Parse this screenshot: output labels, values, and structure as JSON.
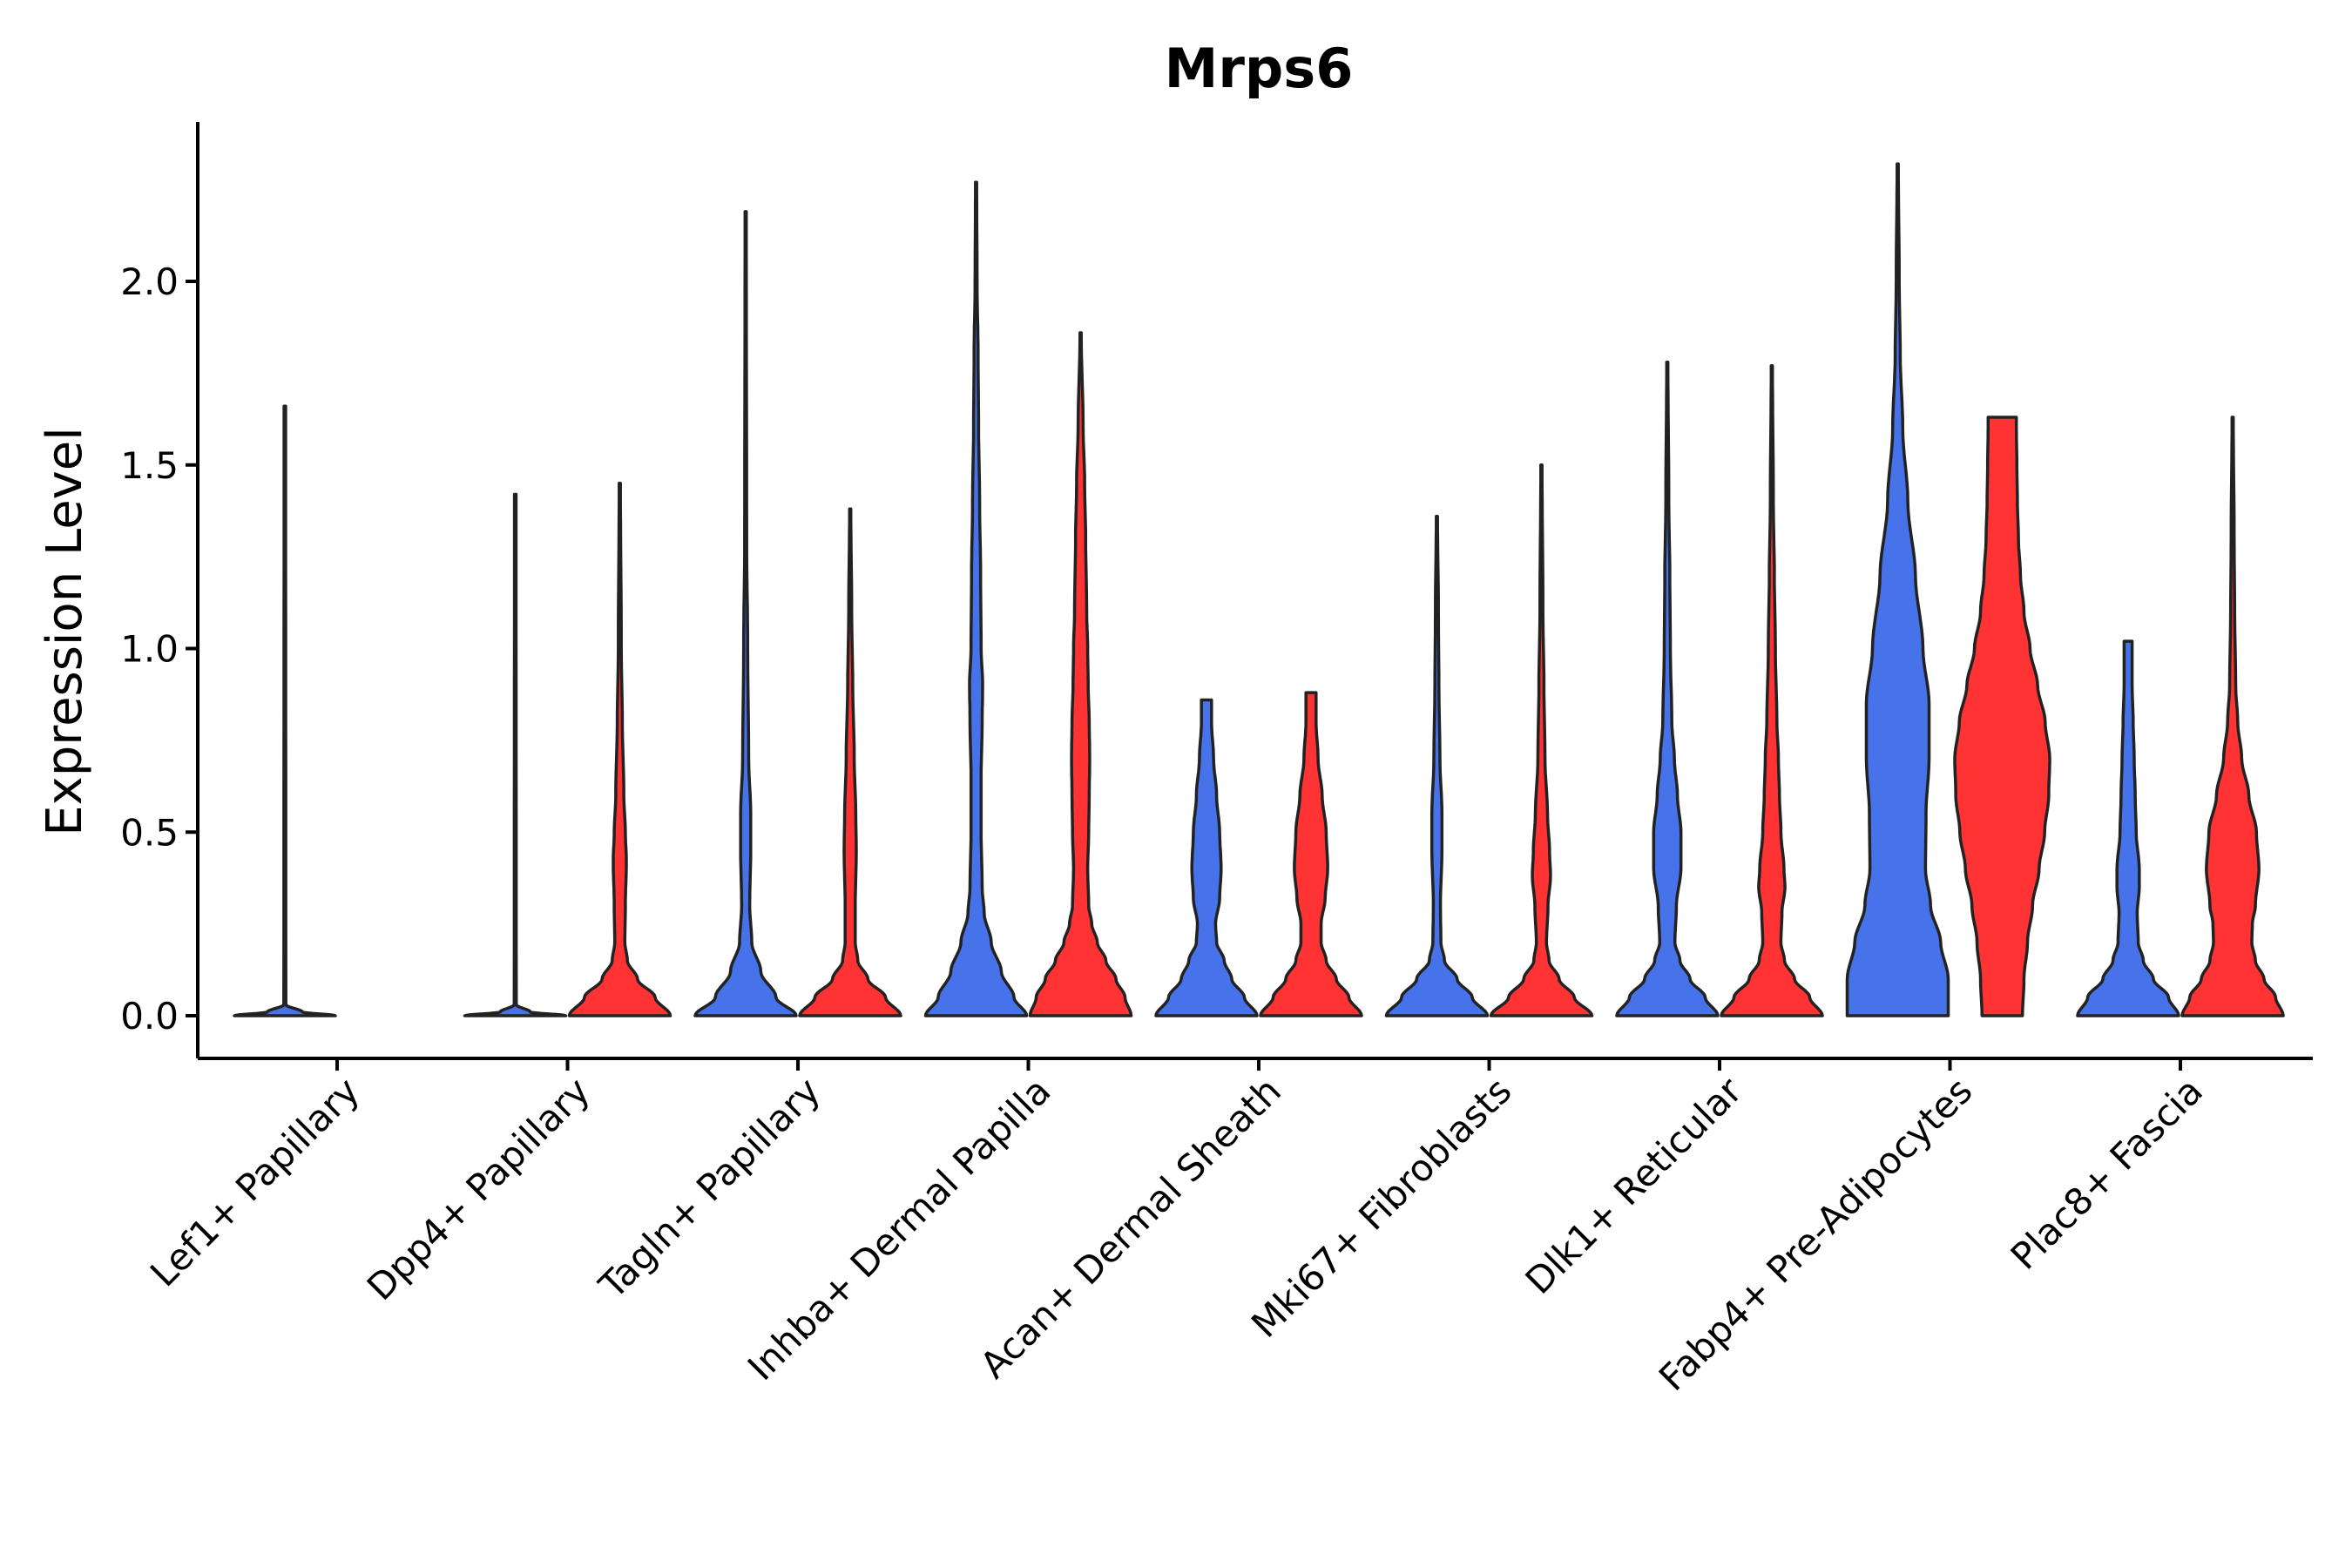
{
  "chart_data": {
    "type": "violin",
    "title": "Mrps6",
    "xlabel": "",
    "ylabel": "Expression Level",
    "ylim": [
      -0.12,
      2.45
    ],
    "yticks": [
      0.0,
      0.5,
      1.0,
      1.5,
      2.0
    ],
    "ytick_labels": [
      "0.0",
      "0.5",
      "1.0",
      "1.5",
      "2.0"
    ],
    "colors": {
      "group1": "#4672EA",
      "group2": "#FF3333"
    },
    "categories": [
      "Lef1+ Papillary",
      "Dpp4+ Papillary",
      "Tagln+ Papillary",
      "Inhba+ Dermal Papilla",
      "Acan+ Dermal Sheath",
      "Mki67+ Fibroblasts",
      "Dlk1+ Reticular",
      "Fabp4+ Pre-Adipocytes",
      "Plac8+ Fascia"
    ],
    "series": [
      {
        "name": "group1",
        "violins": [
          {
            "category": "Lef1+ Papillary",
            "max": 1.66,
            "profile": [
              [
                0.0,
                1.0
              ],
              [
                0.01,
                0.35
              ],
              [
                0.03,
                0.02
              ],
              [
                1.66,
                0.015
              ]
            ]
          },
          {
            "category": "Dpp4+ Papillary",
            "max": 1.42,
            "profile": [
              [
                0.0,
                1.0
              ],
              [
                0.01,
                0.3
              ],
              [
                0.03,
                0.02
              ],
              [
                1.42,
                0.015
              ]
            ]
          },
          {
            "category": "Tagln+ Papillary",
            "max": 2.19,
            "profile": [
              [
                0.0,
                1.0
              ],
              [
                0.05,
                0.6
              ],
              [
                0.12,
                0.3
              ],
              [
                0.2,
                0.12
              ],
              [
                0.3,
                0.08
              ],
              [
                0.45,
                0.1
              ],
              [
                0.55,
                0.1
              ],
              [
                0.7,
                0.06
              ],
              [
                1.0,
                0.04
              ],
              [
                1.3,
                0.02
              ],
              [
                2.19,
                0.012
              ]
            ]
          },
          {
            "category": "Inhba+ Dermal Papilla",
            "max": 2.27,
            "profile": [
              [
                0.0,
                1.0
              ],
              [
                0.05,
                0.75
              ],
              [
                0.12,
                0.5
              ],
              [
                0.2,
                0.3
              ],
              [
                0.28,
                0.16
              ],
              [
                0.35,
                0.12
              ],
              [
                0.5,
                0.1
              ],
              [
                0.65,
                0.1
              ],
              [
                0.8,
                0.12
              ],
              [
                0.9,
                0.13
              ],
              [
                1.0,
                0.1
              ],
              [
                1.2,
                0.09
              ],
              [
                1.4,
                0.07
              ],
              [
                1.6,
                0.05
              ],
              [
                1.8,
                0.04
              ],
              [
                2.0,
                0.02
              ],
              [
                2.27,
                0.012
              ]
            ]
          },
          {
            "category": "Acan+ Dermal Sheath",
            "max": 0.86,
            "profile": [
              [
                0.0,
                1.0
              ],
              [
                0.05,
                0.75
              ],
              [
                0.1,
                0.5
              ],
              [
                0.15,
                0.35
              ],
              [
                0.2,
                0.2
              ],
              [
                0.25,
                0.18
              ],
              [
                0.32,
                0.26
              ],
              [
                0.4,
                0.29
              ],
              [
                0.5,
                0.26
              ],
              [
                0.6,
                0.2
              ],
              [
                0.7,
                0.14
              ],
              [
                0.8,
                0.1
              ],
              [
                0.86,
                0.1
              ]
            ]
          },
          {
            "category": "Mki67+ Fibroblasts",
            "max": 1.36,
            "profile": [
              [
                0.0,
                1.0
              ],
              [
                0.05,
                0.7
              ],
              [
                0.1,
                0.4
              ],
              [
                0.15,
                0.15
              ],
              [
                0.2,
                0.08
              ],
              [
                0.3,
                0.07
              ],
              [
                0.45,
                0.1
              ],
              [
                0.55,
                0.1
              ],
              [
                0.7,
                0.06
              ],
              [
                0.9,
                0.04
              ],
              [
                1.1,
                0.03
              ],
              [
                1.36,
                0.012
              ]
            ]
          },
          {
            "category": "Dlk1+ Reticular",
            "max": 1.78,
            "profile": [
              [
                0.0,
                1.0
              ],
              [
                0.05,
                0.75
              ],
              [
                0.1,
                0.45
              ],
              [
                0.15,
                0.25
              ],
              [
                0.2,
                0.15
              ],
              [
                0.3,
                0.18
              ],
              [
                0.4,
                0.27
              ],
              [
                0.5,
                0.27
              ],
              [
                0.6,
                0.2
              ],
              [
                0.7,
                0.14
              ],
              [
                0.8,
                0.09
              ],
              [
                1.0,
                0.06
              ],
              [
                1.2,
                0.05
              ],
              [
                1.4,
                0.03
              ],
              [
                1.78,
                0.012
              ]
            ]
          },
          {
            "category": "Fabp4+ Pre-Adipocytes",
            "max": 2.32,
            "profile": [
              [
                0.0,
                1.0
              ],
              [
                0.1,
                1.0
              ],
              [
                0.2,
                0.85
              ],
              [
                0.3,
                0.65
              ],
              [
                0.4,
                0.55
              ],
              [
                0.55,
                0.56
              ],
              [
                0.7,
                0.62
              ],
              [
                0.85,
                0.62
              ],
              [
                1.0,
                0.5
              ],
              [
                1.2,
                0.35
              ],
              [
                1.4,
                0.2
              ],
              [
                1.6,
                0.1
              ],
              [
                1.8,
                0.05
              ],
              [
                2.0,
                0.03
              ],
              [
                2.32,
                0.012
              ]
            ]
          },
          {
            "category": "Plac8+ Fascia",
            "max": 1.02,
            "profile": [
              [
                0.0,
                1.0
              ],
              [
                0.05,
                0.8
              ],
              [
                0.1,
                0.5
              ],
              [
                0.15,
                0.3
              ],
              [
                0.2,
                0.2
              ],
              [
                0.28,
                0.18
              ],
              [
                0.35,
                0.22
              ],
              [
                0.4,
                0.22
              ],
              [
                0.5,
                0.16
              ],
              [
                0.6,
                0.14
              ],
              [
                0.7,
                0.12
              ],
              [
                0.8,
                0.1
              ],
              [
                0.9,
                0.08
              ],
              [
                1.02,
                0.08
              ]
            ]
          }
        ]
      },
      {
        "name": "group2",
        "violins": [
          {
            "category": "Dpp4+ Papillary",
            "max": 1.45,
            "profile": [
              [
                0.0,
                1.0
              ],
              [
                0.05,
                0.7
              ],
              [
                0.1,
                0.35
              ],
              [
                0.15,
                0.15
              ],
              [
                0.2,
                0.1
              ],
              [
                0.3,
                0.11
              ],
              [
                0.42,
                0.13
              ],
              [
                0.5,
                0.11
              ],
              [
                0.6,
                0.08
              ],
              [
                0.8,
                0.05
              ],
              [
                1.0,
                0.03
              ],
              [
                1.45,
                0.012
              ]
            ]
          },
          {
            "category": "Tagln+ Papillary",
            "max": 1.38,
            "profile": [
              [
                0.0,
                1.0
              ],
              [
                0.05,
                0.7
              ],
              [
                0.1,
                0.35
              ],
              [
                0.15,
                0.15
              ],
              [
                0.2,
                0.1
              ],
              [
                0.3,
                0.1
              ],
              [
                0.45,
                0.12
              ],
              [
                0.55,
                0.11
              ],
              [
                0.7,
                0.08
              ],
              [
                0.9,
                0.05
              ],
              [
                1.1,
                0.03
              ],
              [
                1.38,
                0.012
              ]
            ]
          },
          {
            "category": "Inhba+ Dermal Papilla",
            "max": 1.86,
            "profile": [
              [
                0.0,
                1.0
              ],
              [
                0.05,
                0.88
              ],
              [
                0.1,
                0.7
              ],
              [
                0.15,
                0.5
              ],
              [
                0.2,
                0.33
              ],
              [
                0.25,
                0.22
              ],
              [
                0.3,
                0.16
              ],
              [
                0.4,
                0.14
              ],
              [
                0.5,
                0.16
              ],
              [
                0.6,
                0.17
              ],
              [
                0.7,
                0.18
              ],
              [
                0.8,
                0.17
              ],
              [
                0.9,
                0.15
              ],
              [
                1.0,
                0.14
              ],
              [
                1.1,
                0.12
              ],
              [
                1.3,
                0.1
              ],
              [
                1.45,
                0.08
              ],
              [
                1.6,
                0.05
              ],
              [
                1.86,
                0.012
              ]
            ]
          },
          {
            "category": "Acan+ Dermal Sheath",
            "max": 0.88,
            "profile": [
              [
                0.0,
                1.0
              ],
              [
                0.05,
                0.75
              ],
              [
                0.1,
                0.5
              ],
              [
                0.15,
                0.3
              ],
              [
                0.2,
                0.2
              ],
              [
                0.25,
                0.2
              ],
              [
                0.32,
                0.28
              ],
              [
                0.4,
                0.33
              ],
              [
                0.5,
                0.3
              ],
              [
                0.6,
                0.22
              ],
              [
                0.7,
                0.14
              ],
              [
                0.8,
                0.1
              ],
              [
                0.88,
                0.1
              ]
            ]
          },
          {
            "category": "Mki67+ Fibroblasts",
            "max": 1.5,
            "profile": [
              [
                0.0,
                1.0
              ],
              [
                0.05,
                0.65
              ],
              [
                0.1,
                0.35
              ],
              [
                0.15,
                0.15
              ],
              [
                0.2,
                0.1
              ],
              [
                0.3,
                0.13
              ],
              [
                0.38,
                0.18
              ],
              [
                0.45,
                0.16
              ],
              [
                0.55,
                0.12
              ],
              [
                0.7,
                0.07
              ],
              [
                0.9,
                0.05
              ],
              [
                1.1,
                0.03
              ],
              [
                1.5,
                0.012
              ]
            ]
          },
          {
            "category": "Dlk1+ Reticular",
            "max": 1.77,
            "profile": [
              [
                0.0,
                1.0
              ],
              [
                0.05,
                0.75
              ],
              [
                0.1,
                0.45
              ],
              [
                0.15,
                0.25
              ],
              [
                0.2,
                0.18
              ],
              [
                0.28,
                0.2
              ],
              [
                0.35,
                0.26
              ],
              [
                0.4,
                0.24
              ],
              [
                0.5,
                0.18
              ],
              [
                0.6,
                0.15
              ],
              [
                0.7,
                0.13
              ],
              [
                0.8,
                0.1
              ],
              [
                1.0,
                0.07
              ],
              [
                1.2,
                0.05
              ],
              [
                1.4,
                0.03
              ],
              [
                1.77,
                0.012
              ]
            ]
          },
          {
            "category": "Fabp4+ Pre-Adipocytes",
            "max": 1.63,
            "profile": [
              [
                0.0,
                0.4
              ],
              [
                0.1,
                0.43
              ],
              [
                0.2,
                0.5
              ],
              [
                0.3,
                0.6
              ],
              [
                0.4,
                0.73
              ],
              [
                0.5,
                0.84
              ],
              [
                0.6,
                0.92
              ],
              [
                0.7,
                0.94
              ],
              [
                0.8,
                0.85
              ],
              [
                0.9,
                0.7
              ],
              [
                1.0,
                0.55
              ],
              [
                1.1,
                0.43
              ],
              [
                1.2,
                0.36
              ],
              [
                1.3,
                0.32
              ],
              [
                1.4,
                0.3
              ],
              [
                1.5,
                0.29
              ],
              [
                1.6,
                0.28
              ],
              [
                1.63,
                0.28
              ]
            ]
          },
          {
            "category": "Plac8+ Fascia",
            "max": 1.63,
            "profile": [
              [
                0.0,
                1.0
              ],
              [
                0.05,
                0.85
              ],
              [
                0.1,
                0.62
              ],
              [
                0.15,
                0.45
              ],
              [
                0.2,
                0.38
              ],
              [
                0.25,
                0.39
              ],
              [
                0.3,
                0.45
              ],
              [
                0.4,
                0.52
              ],
              [
                0.5,
                0.47
              ],
              [
                0.6,
                0.32
              ],
              [
                0.7,
                0.18
              ],
              [
                0.8,
                0.1
              ],
              [
                0.9,
                0.06
              ],
              [
                1.1,
                0.04
              ],
              [
                1.3,
                0.03
              ],
              [
                1.63,
                0.012
              ]
            ]
          }
        ]
      }
    ]
  }
}
